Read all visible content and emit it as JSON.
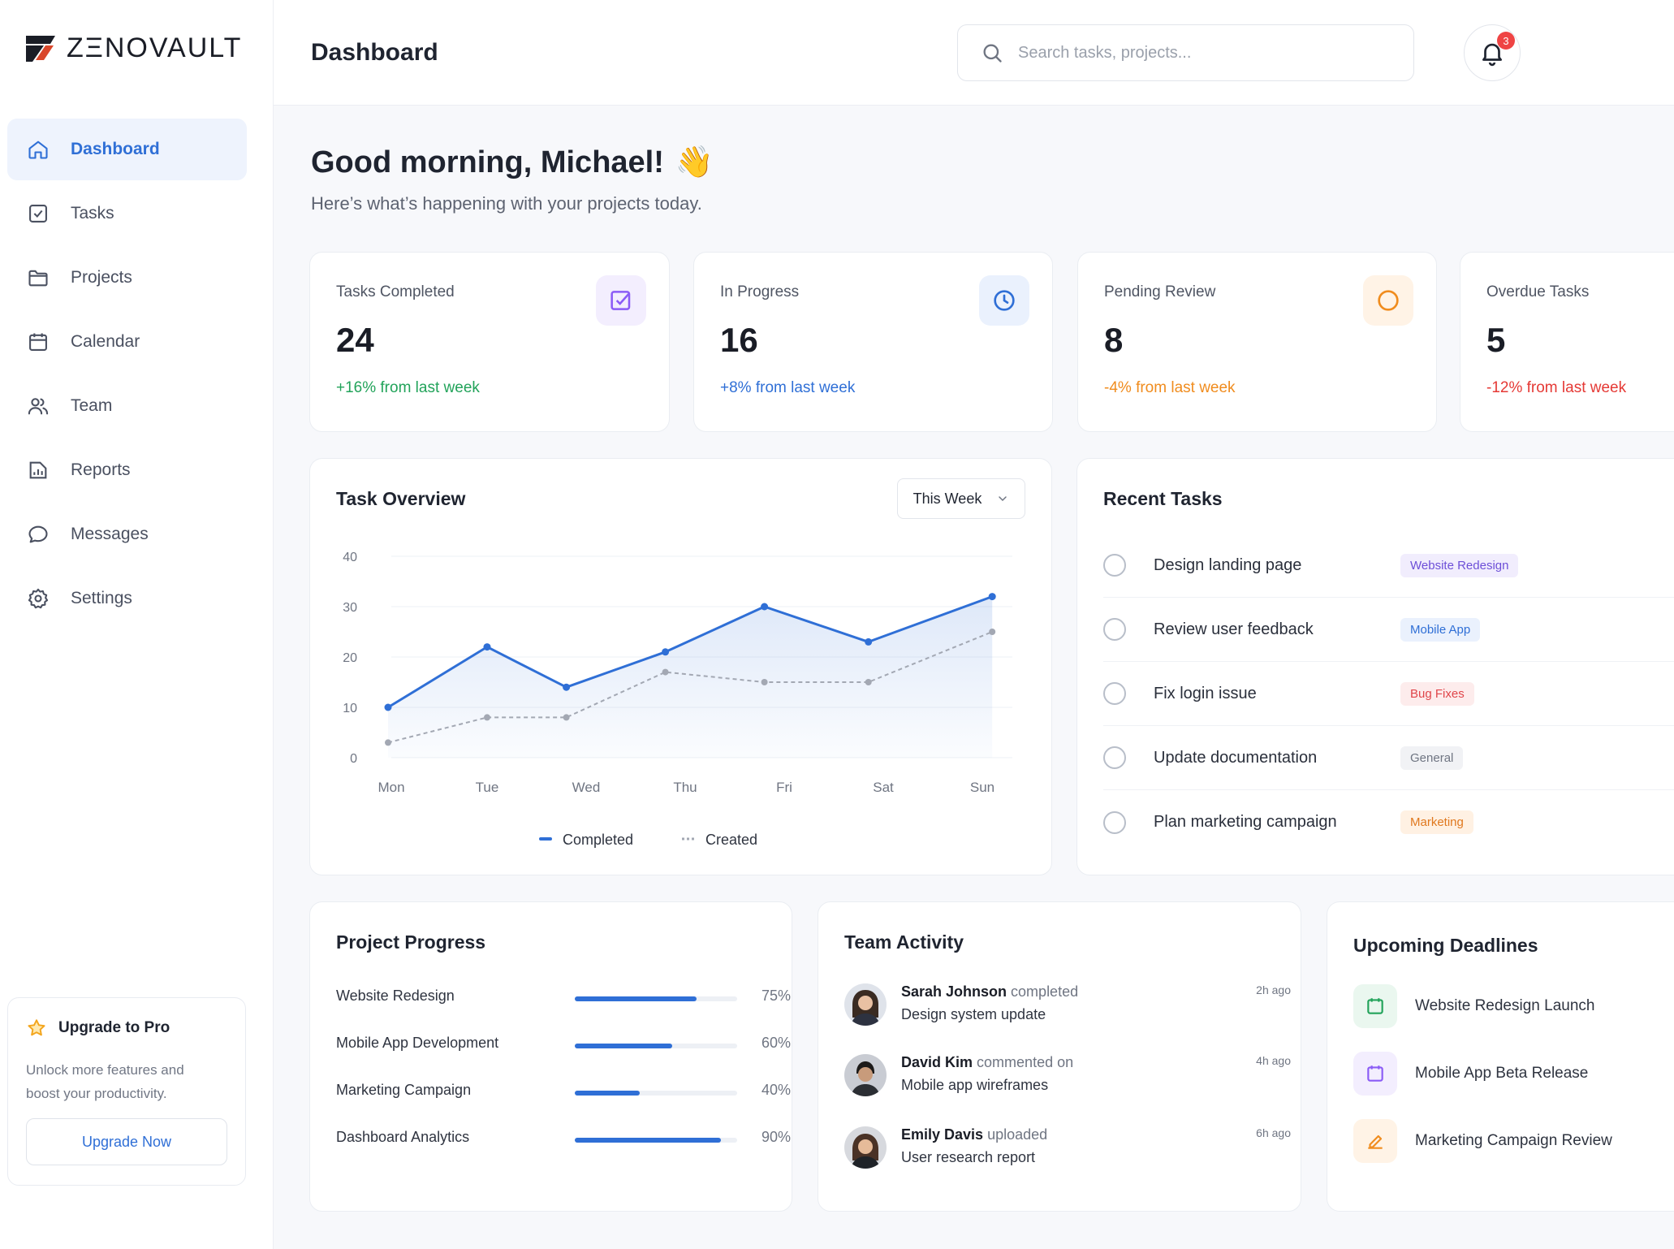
{
  "app": {
    "logo_text": "ZΞNOVAULT"
  },
  "sidebar": {
    "items": [
      {
        "label": "Dashboard",
        "icon": "home-icon",
        "active": true
      },
      {
        "label": "Tasks",
        "icon": "checkbox-icon"
      },
      {
        "label": "Projects",
        "icon": "folder-icon"
      },
      {
        "label": "Calendar",
        "icon": "calendar-icon"
      },
      {
        "label": "Team",
        "icon": "users-icon"
      },
      {
        "label": "Reports",
        "icon": "report-icon"
      },
      {
        "label": "Messages",
        "icon": "message-icon"
      },
      {
        "label": "Settings",
        "icon": "gear-icon"
      }
    ],
    "upgrade": {
      "title": "Upgrade to Pro",
      "text": "Unlock more features and boost your productivity.",
      "button": "Upgrade Now"
    }
  },
  "header": {
    "title": "Dashboard",
    "search_placeholder": "Search tasks, projects...",
    "notifications": "3"
  },
  "greeting": {
    "title": "Good morning, Michael!",
    "emoji": "👋",
    "subtitle": "Here’s what’s happening with your projects today."
  },
  "stats": [
    {
      "label": "Tasks Completed",
      "value": "24",
      "change": "+16% from last week",
      "color": "#22a35a",
      "icon": "check-square-icon",
      "icon_color": "#8b5cf6",
      "icon_bg": "#f3eefe"
    },
    {
      "label": "In Progress",
      "value": "16",
      "change": "+8% from last week",
      "color": "#2f6fd6",
      "icon": "clock-icon",
      "icon_color": "#2f6fd6",
      "icon_bg": "#eaf1fd"
    },
    {
      "label": "Pending Review",
      "value": "8",
      "change": "-4% from last week",
      "color": "#f08c1e",
      "icon": "circle-icon",
      "icon_color": "#f08c1e",
      "icon_bg": "#fff3e6"
    },
    {
      "label": "Overdue Tasks",
      "value": "5",
      "change": "-12% from last week",
      "color": "#e53935",
      "icon": "alert-icon",
      "icon_color": "#e53935",
      "icon_bg": "#fdecec"
    }
  ],
  "task_overview": {
    "title": "Task Overview",
    "range": "This Week",
    "chart_data": {
      "type": "line",
      "categories": [
        "Mon",
        "Tue",
        "Wed",
        "Thu",
        "Fri",
        "Sat",
        "Sun"
      ],
      "y_ticks": [
        0,
        10,
        20,
        30,
        40
      ],
      "ylim": [
        0,
        40
      ],
      "series": [
        {
          "name": "Completed",
          "values": [
            10,
            22,
            14,
            21,
            30,
            23,
            32
          ],
          "color": "#2f6fd6",
          "style": "solid",
          "x": [
            0,
            1,
            1.8,
            2.8,
            3.8,
            4.85,
            6.1
          ]
        },
        {
          "name": "Created",
          "values": [
            3,
            8,
            8,
            17,
            15,
            15,
            25
          ],
          "color": "#a3a8b3",
          "style": "dashed",
          "x": [
            0,
            1,
            1.8,
            2.8,
            3.8,
            4.85,
            6.1
          ]
        }
      ],
      "grid": true,
      "legend": "bottom-center"
    }
  },
  "recent_tasks": {
    "title": "Recent Tasks",
    "items": [
      {
        "name": "Design landing page",
        "tag": "Website Redesign",
        "tag_color": "#6d4fd8",
        "tag_bg": "#f1edfd"
      },
      {
        "name": "Review user feedback",
        "tag": "Mobile App",
        "tag_color": "#2f6fd6",
        "tag_bg": "#eaf1fd"
      },
      {
        "name": "Fix login issue",
        "tag": "Bug Fixes",
        "tag_color": "#e0454a",
        "tag_bg": "#fdecec"
      },
      {
        "name": "Update documentation",
        "tag": "General",
        "tag_color": "#6f7582",
        "tag_bg": "#f1f2f5"
      },
      {
        "name": "Plan marketing campaign",
        "tag": "Marketing",
        "tag_color": "#e0781e",
        "tag_bg": "#fff1e3"
      }
    ]
  },
  "project_progress": {
    "title": "Project Progress",
    "items": [
      {
        "name": "Website Redesign",
        "percent": 75,
        "label": "75%"
      },
      {
        "name": "Mobile App Development",
        "percent": 60,
        "label": "60%"
      },
      {
        "name": "Marketing Campaign",
        "percent": 40,
        "label": "40%"
      },
      {
        "name": "Dashboard Analytics",
        "percent": 90,
        "label": "90%"
      }
    ]
  },
  "team_activity": {
    "title": "Team Activity",
    "items": [
      {
        "user": "Sarah Johnson",
        "verb": "completed",
        "object": "Design system update",
        "time": "2h ago",
        "avatar": "avatar-woman-icon"
      },
      {
        "user": "David Kim",
        "verb": "commented on",
        "object": "Mobile app wireframes",
        "time": "4h ago",
        "avatar": "avatar-man-icon"
      },
      {
        "user": "Emily Davis",
        "verb": "uploaded",
        "object": "User research report",
        "time": "6h ago",
        "avatar": "avatar-woman-icon"
      }
    ]
  },
  "deadlines": {
    "title": "Upcoming Deadlines",
    "items": [
      {
        "name": "Website Redesign Launch",
        "icon": "calendar-icon",
        "color": "#22a35a",
        "bg": "#eaf7ef"
      },
      {
        "name": "Mobile App Beta Release",
        "icon": "calendar-icon",
        "color": "#8b5cf6",
        "bg": "#f3eefe"
      },
      {
        "name": "Marketing Campaign Review",
        "icon": "edit-icon",
        "color": "#f08c1e",
        "bg": "#fff3e6"
      }
    ]
  }
}
